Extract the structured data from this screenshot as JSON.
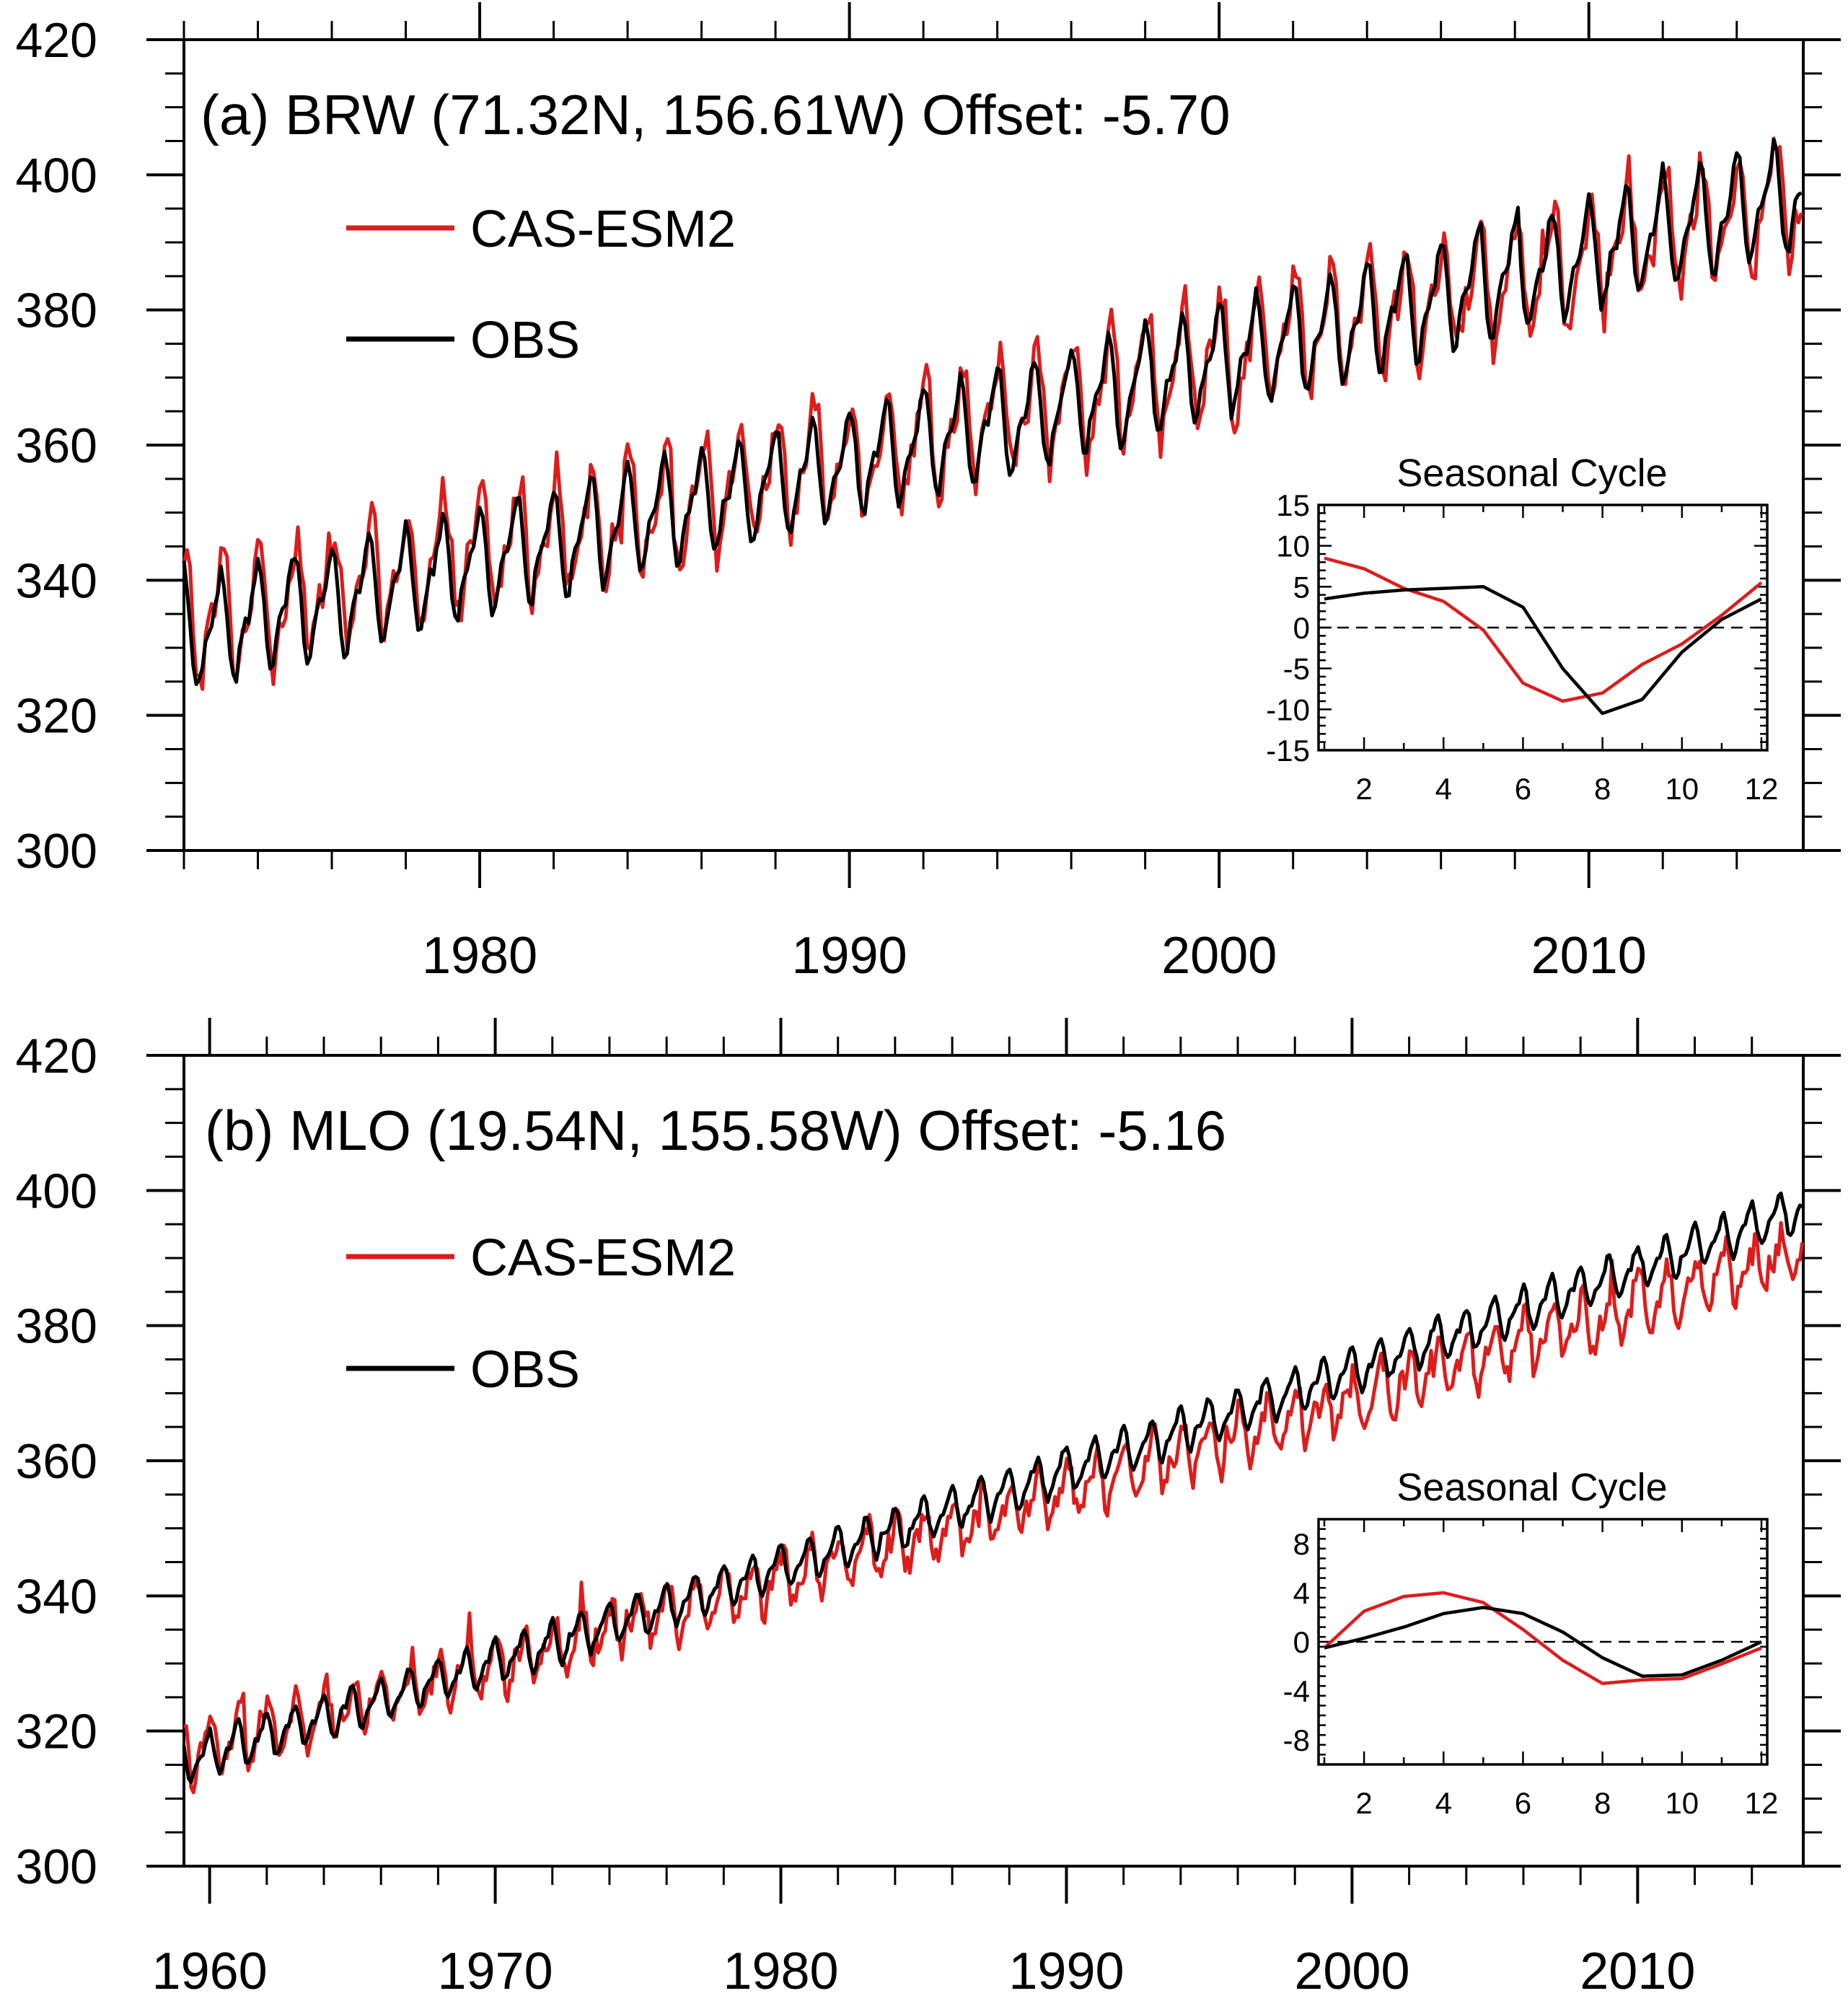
{
  "figure": {
    "background": "#ffffff",
    "colors": {
      "model": "#dd1c1c",
      "obs": "#000000"
    }
  },
  "chart_data": [
    {
      "type": "line",
      "panel": "a",
      "title": "(a) BRW (71.32N, 156.61W)  Offset: -5.70",
      "xlabel": "",
      "ylabel": "",
      "xlim": [
        1972.0,
        2015.8
      ],
      "ylim": [
        300,
        420
      ],
      "yticks": [
        300,
        320,
        340,
        360,
        380,
        400,
        420
      ],
      "xticks": [
        1980,
        1990,
        2000,
        2010
      ],
      "legend": {
        "placement": "top-left",
        "entries": [
          "CAS-ESM2",
          "OBS"
        ]
      },
      "series": [
        {
          "name": "CAS-ESM2",
          "color": "#dd1c1c",
          "start_year": 1972.0,
          "end_year": 2015.8,
          "trend_start": 333.5,
          "trend_end": 397.0,
          "amplitude": 9.0,
          "phase": 0.0,
          "noise": 3.0
        },
        {
          "name": "OBS",
          "color": "#000000",
          "start_year": 1972.0,
          "end_year": 2015.8,
          "trend_start": 331.5,
          "trend_end": 397.5,
          "amplitude": 8.0,
          "phase": 0.06,
          "noise": 1.0
        }
      ],
      "inset": {
        "title": "Seasonal Cycle",
        "placement": "lower-right",
        "xlim": [
          1,
          12
        ],
        "ylim": [
          -15,
          15
        ],
        "xticks": [
          2,
          4,
          6,
          8,
          10,
          12
        ],
        "yticks": [
          -15,
          -10,
          -5,
          0,
          5,
          10,
          15
        ],
        "zero_line": "dashed",
        "x": [
          1,
          2,
          3,
          4,
          5,
          6,
          7,
          8,
          9,
          10,
          11,
          12
        ],
        "series": [
          {
            "name": "CAS-ESM2",
            "color": "#dd1c1c",
            "values": [
              8.5,
              7.2,
              4.8,
              3.2,
              -0.3,
              -6.8,
              -9.0,
              -8.0,
              -4.5,
              -2.0,
              1.5,
              5.5
            ]
          },
          {
            "name": "OBS",
            "color": "#000000",
            "values": [
              3.5,
              4.2,
              4.6,
              4.8,
              5.0,
              2.5,
              -5.0,
              -10.5,
              -8.8,
              -3.0,
              1.0,
              3.5
            ]
          }
        ]
      }
    },
    {
      "type": "line",
      "panel": "b",
      "title": "(b) MLO (19.54N, 155.58W)  Offset: -5.16",
      "xlabel": "",
      "ylabel": "",
      "xlim": [
        1959.1,
        2015.8
      ],
      "ylim": [
        300,
        420
      ],
      "yticks": [
        300,
        320,
        340,
        360,
        380,
        400,
        420
      ],
      "xticks": [
        1960,
        1970,
        1980,
        1990,
        2000,
        2010
      ],
      "legend": {
        "placement": "top-left",
        "entries": [
          "CAS-ESM2",
          "OBS"
        ]
      },
      "series": [
        {
          "name": "CAS-ESM2",
          "color": "#dd1c1c",
          "start_year": 1959.1,
          "end_year": 2015.8,
          "trend_start": 316.5,
          "trend_end": 391.0,
          "amplitude": 4.2,
          "phase": 0.0,
          "noise": 1.8
        },
        {
          "name": "OBS",
          "color": "#000000",
          "start_year": 1959.1,
          "end_year": 2015.8,
          "trend_start": 315.5,
          "trend_end": 397.5,
          "amplitude": 3.2,
          "phase": 0.08,
          "noise": 0.5
        }
      ],
      "inset": {
        "title": "Seasonal Cycle",
        "placement": "lower-right",
        "xlim": [
          1,
          12
        ],
        "ylim": [
          -10,
          10
        ],
        "xticks": [
          2,
          4,
          6,
          8,
          10,
          12
        ],
        "yticks": [
          -8,
          -4,
          0,
          4,
          8
        ],
        "zero_line": "dashed",
        "x": [
          1,
          2,
          3,
          4,
          5,
          6,
          7,
          8,
          9,
          10,
          11,
          12
        ],
        "series": [
          {
            "name": "CAS-ESM2",
            "color": "#dd1c1c",
            "values": [
              -0.5,
              2.5,
              3.7,
              4.0,
              3.2,
              1.0,
              -1.5,
              -3.4,
              -3.1,
              -3.0,
              -1.8,
              -0.5
            ]
          },
          {
            "name": "OBS",
            "color": "#000000",
            "values": [
              -0.5,
              0.3,
              1.2,
              2.3,
              2.8,
              2.3,
              0.8,
              -1.3,
              -2.8,
              -2.7,
              -1.5,
              0.0
            ]
          }
        ]
      }
    }
  ]
}
